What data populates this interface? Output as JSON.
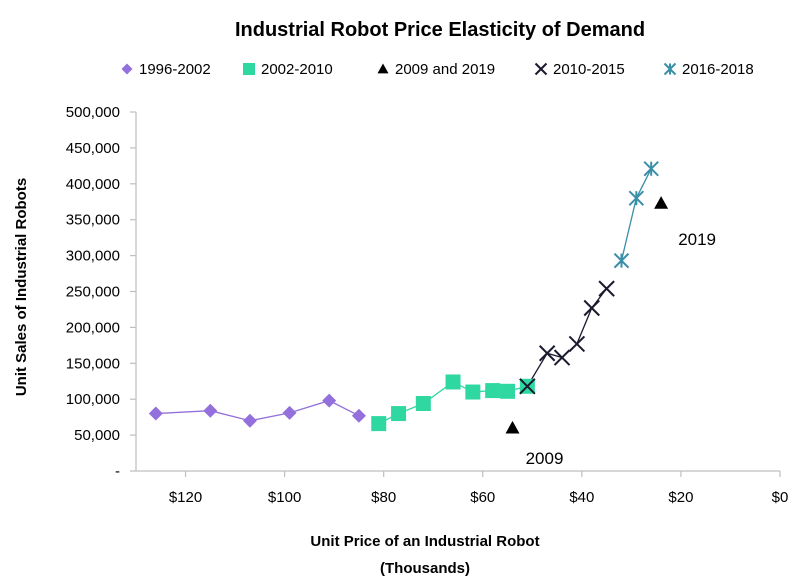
{
  "chart_data": {
    "type": "scatter",
    "title": "Industrial Robot Price Elasticity of Demand",
    "xlabel": "Unit Price of an Industrial Robot",
    "xlabel_sub": "(Thousands)",
    "ylabel": "Unit Sales of Industrial Robots",
    "x_reversed": true,
    "xlim": [
      0,
      130
    ],
    "ylim": [
      0,
      500000
    ],
    "x_ticks": [
      120,
      100,
      80,
      60,
      40,
      20,
      0
    ],
    "x_tick_labels": [
      "$120",
      "$100",
      "$80",
      "$60",
      "$40",
      "$20",
      "$0"
    ],
    "y_ticks": [
      0,
      50000,
      100000,
      150000,
      200000,
      250000,
      300000,
      350000,
      400000,
      450000,
      500000
    ],
    "y_tick_labels": [
      "-",
      "50,000",
      "100,000",
      "150,000",
      "200,000",
      "250,000",
      "300,000",
      "350,000",
      "400,000",
      "450,000",
      "500,000"
    ],
    "grid": false,
    "legend_position": "top",
    "series": [
      {
        "name": "1996-2002",
        "marker": "diamond",
        "color": "#9370DB",
        "line": true,
        "x": [
          126,
          115,
          107,
          99,
          91,
          85
        ],
        "y": [
          80000,
          84000,
          70000,
          81000,
          98000,
          77000
        ]
      },
      {
        "name": "2002-2010",
        "marker": "square",
        "color": "#2FD8A0",
        "line": true,
        "x": [
          81,
          77,
          72,
          66,
          62,
          58,
          55,
          51
        ],
        "y": [
          66000,
          80000,
          94000,
          124000,
          110000,
          112000,
          111000,
          118000
        ]
      },
      {
        "name": "2009 and 2019",
        "marker": "triangle",
        "color": "#000000",
        "line": false,
        "x": [
          54,
          24
        ],
        "y": [
          60000,
          373000
        ]
      },
      {
        "name": "2010-2015",
        "marker": "x",
        "color": "#1a1a2e",
        "line": true,
        "x": [
          51,
          47,
          44,
          41,
          38,
          35
        ],
        "y": [
          118000,
          164000,
          158000,
          177000,
          227000,
          254000
        ]
      },
      {
        "name": "2016-2018",
        "marker": "asterisk",
        "color": "#3A8FA8",
        "line": true,
        "x": [
          32,
          29,
          26
        ],
        "y": [
          293000,
          380000,
          421000
        ]
      }
    ],
    "annotations": [
      {
        "text": "2009",
        "x": 54,
        "y": 60000
      },
      {
        "text": "2019",
        "x": 24,
        "y": 373000
      }
    ]
  }
}
